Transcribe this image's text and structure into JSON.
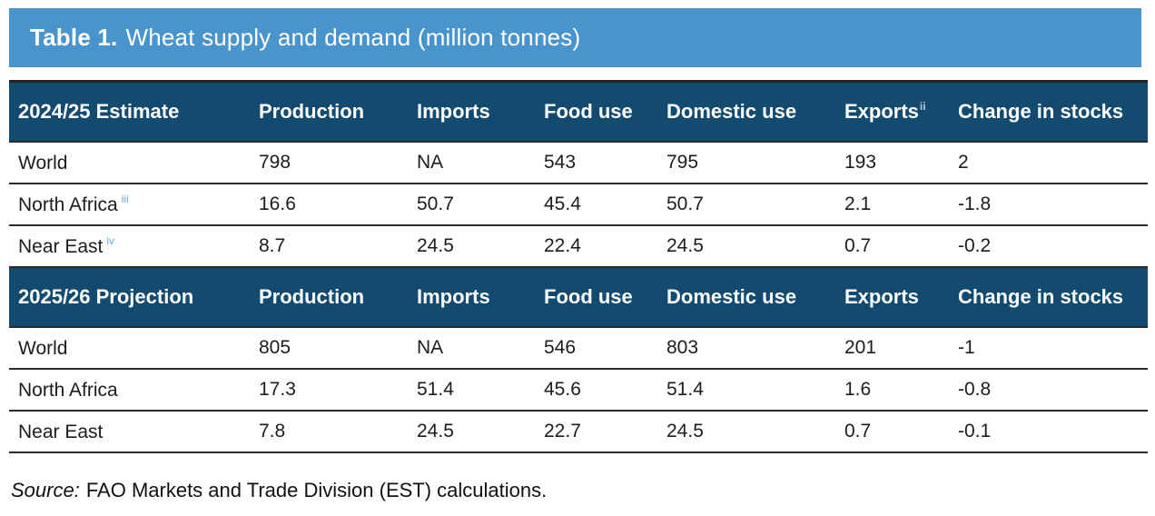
{
  "title": {
    "label": "Table 1.",
    "text": "Wheat supply and demand (million tonnes)"
  },
  "colors": {
    "title_bar_blue": "#4a94ce",
    "header_navy": "#134a70",
    "row_border": "#2b2b2b",
    "footnote_blue": "#6fa5d8",
    "footnote_header_gray": "#b9c6d1"
  },
  "columns": [
    "Production",
    "Imports",
    "Food use",
    "Domestic use",
    "Exports",
    "Change in stocks"
  ],
  "sections": [
    {
      "heading": "2024/25 Estimate",
      "exports_superscript": "ii",
      "rows": [
        {
          "label": "World",
          "superscript": "",
          "values": [
            "798",
            "NA",
            "543",
            "795",
            "193",
            "2"
          ]
        },
        {
          "label": "North Africa",
          "superscript": "iii",
          "values": [
            "16.6",
            "50.7",
            "45.4",
            "50.7",
            "2.1",
            "-1.8"
          ]
        },
        {
          "label": "Near East",
          "superscript": "iv",
          "values": [
            "8.7",
            "24.5",
            "22.4",
            "24.5",
            "0.7",
            "-0.2"
          ]
        }
      ]
    },
    {
      "heading": "2025/26 Projection",
      "exports_superscript": "",
      "rows": [
        {
          "label": "World",
          "superscript": "",
          "values": [
            "805",
            "NA",
            "546",
            "803",
            "201",
            "-1"
          ]
        },
        {
          "label": "North Africa",
          "superscript": "",
          "values": [
            "17.3",
            "51.4",
            "45.6",
            "51.4",
            "1.6",
            "-0.8"
          ]
        },
        {
          "label": "Near East",
          "superscript": "",
          "values": [
            "7.8",
            "24.5",
            "22.7",
            "24.5",
            "0.7",
            "-0.1"
          ]
        }
      ]
    }
  ],
  "source": {
    "label": "Source:",
    "text": "FAO Markets and Trade Division (EST) calculations."
  }
}
